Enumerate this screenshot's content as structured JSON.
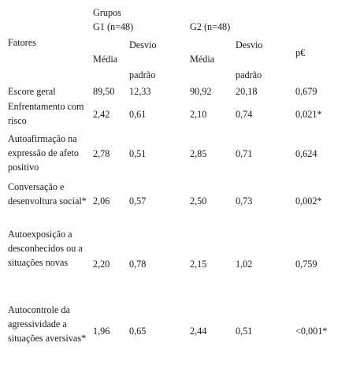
{
  "header": {
    "fatores_label": "Fatores",
    "grupos_label": "Grupos",
    "g1_label": "G1 (n=48)",
    "g2_label": "G2 (n=48)",
    "media_label": "Média",
    "desvio_line1": "Desvio",
    "desvio_line2": "padrão",
    "p_label": "p€"
  },
  "rows": [
    {
      "factor": "Escore geral",
      "g1_media": "89,50",
      "g1_dp": "12,33",
      "g2_media": "90,92",
      "g2_dp": "20,18",
      "p": "0,679"
    },
    {
      "factor": "Enfrentamento com risco",
      "g1_media": "2,42",
      "g1_dp": "0,61",
      "g2_media": "2,10",
      "g2_dp": "0,74",
      "p": "0,021*"
    },
    {
      "factor": "Autoafirmação na expressão de afeto positivo",
      "g1_media": "2,78",
      "g1_dp": "0,51",
      "g2_media": "2,85",
      "g2_dp": "0,71",
      "p": "0,624"
    },
    {
      "factor": "Conversação e desenvoltura social*",
      "g1_media": "2,06",
      "g1_dp": "0,57",
      "g2_media": "2,50",
      "g2_dp": "0,73",
      "p": "0,002*"
    },
    {
      "factor": "Autoexposição a desconhecidos ou a situações novas",
      "g1_media": "2,20",
      "g1_dp": "0,78",
      "g2_media": "2,15",
      "g2_dp": "1,02",
      "p": "0,759"
    },
    {
      "factor": "Autocontrole da agressividade a situações aversivas*",
      "g1_media": "1,96",
      "g1_dp": "0,65",
      "g2_media": "2,44",
      "g2_dp": "0,51",
      "p": "<0,001*"
    }
  ]
}
